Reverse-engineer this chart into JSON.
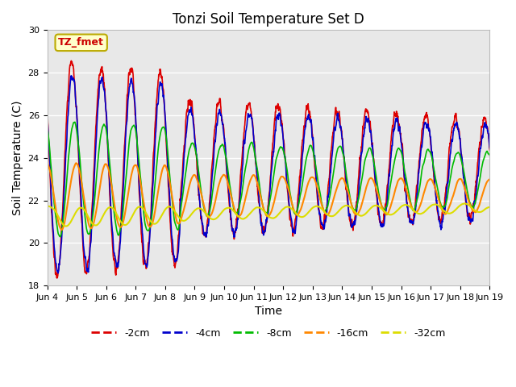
{
  "title": "Tonzi Soil Temperature Set D",
  "xlabel": "Time",
  "ylabel": "Soil Temperature (C)",
  "ylim": [
    18,
    30
  ],
  "xlim": [
    0,
    15
  ],
  "fig_bg": "#ffffff",
  "plot_bg": "#e8e8e8",
  "annotation_text": "TZ_fmet",
  "annotation_bg": "#ffffcc",
  "annotation_border": "#bbaa00",
  "annotation_text_color": "#cc0000",
  "xtick_labels": [
    "Jun 4",
    "Jun 5",
    "Jun 6",
    "Jun 7",
    "Jun 8",
    "Jun 9",
    "Jun 10",
    "Jun 11",
    "Jun 12",
    "Jun 13",
    "Jun 14",
    "Jun 15",
    "Jun 16",
    "Jun 17",
    "Jun 18",
    "Jun 19"
  ],
  "ytick_vals": [
    18,
    20,
    22,
    24,
    26,
    28,
    30
  ],
  "series": [
    {
      "label": "-2cm",
      "color": "#dd0000",
      "lw": 1.2
    },
    {
      "label": "-4cm",
      "color": "#0000cc",
      "lw": 1.2
    },
    {
      "label": "-8cm",
      "color": "#00bb00",
      "lw": 1.2
    },
    {
      "label": "-16cm",
      "color": "#ff8800",
      "lw": 1.5
    },
    {
      "label": "-32cm",
      "color": "#dddd00",
      "lw": 1.5
    }
  ],
  "grid_color": "#ffffff",
  "tick_fontsize": 8,
  "label_fontsize": 10,
  "title_fontsize": 12
}
